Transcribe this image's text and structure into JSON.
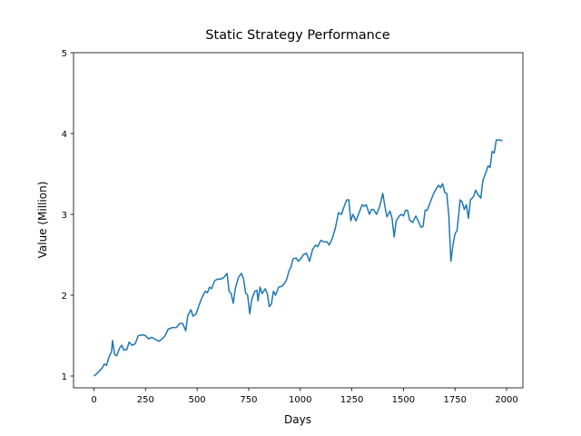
{
  "chart_data": {
    "type": "line",
    "title": "Static Strategy Performance",
    "x_label": "Days",
    "y_label": "Value (Million)",
    "x": [
      0,
      10,
      25,
      40,
      50,
      60,
      75,
      85,
      90,
      100,
      110,
      125,
      135,
      145,
      160,
      170,
      185,
      200,
      215,
      235,
      250,
      265,
      280,
      300,
      315,
      330,
      345,
      360,
      380,
      400,
      415,
      430,
      445,
      455,
      470,
      480,
      495,
      510,
      525,
      540,
      550,
      560,
      570,
      585,
      600,
      615,
      630,
      645,
      655,
      665,
      675,
      685,
      700,
      715,
      725,
      735,
      745,
      755,
      765,
      780,
      790,
      795,
      805,
      815,
      830,
      840,
      850,
      860,
      870,
      880,
      895,
      910,
      925,
      935,
      945,
      955,
      965,
      980,
      990,
      1000,
      1015,
      1030,
      1045,
      1060,
      1075,
      1085,
      1100,
      1115,
      1130,
      1140,
      1155,
      1170,
      1185,
      1200,
      1210,
      1225,
      1235,
      1245,
      1255,
      1270,
      1285,
      1300,
      1310,
      1320,
      1335,
      1345,
      1355,
      1370,
      1385,
      1400,
      1410,
      1420,
      1435,
      1445,
      1455,
      1465,
      1480,
      1490,
      1500,
      1510,
      1520,
      1530,
      1545,
      1560,
      1570,
      1585,
      1595,
      1605,
      1615,
      1630,
      1645,
      1655,
      1670,
      1680,
      1690,
      1700,
      1710,
      1720,
      1730,
      1740,
      1750,
      1760,
      1775,
      1785,
      1795,
      1805,
      1815,
      1825,
      1840,
      1850,
      1860,
      1875,
      1885,
      1900,
      1910,
      1920,
      1930,
      1940,
      1950,
      1965,
      1980
    ],
    "series": [
      {
        "name": "Value",
        "color": "#1f77b4",
        "values": [
          1.0,
          1.02,
          1.06,
          1.1,
          1.15,
          1.13,
          1.25,
          1.3,
          1.44,
          1.27,
          1.25,
          1.35,
          1.38,
          1.32,
          1.33,
          1.42,
          1.38,
          1.4,
          1.5,
          1.51,
          1.5,
          1.46,
          1.48,
          1.45,
          1.43,
          1.46,
          1.5,
          1.58,
          1.6,
          1.6,
          1.65,
          1.65,
          1.56,
          1.75,
          1.82,
          1.74,
          1.77,
          1.88,
          1.98,
          2.05,
          2.03,
          2.1,
          2.08,
          2.18,
          2.2,
          2.2,
          2.22,
          2.27,
          2.05,
          2.02,
          1.9,
          2.08,
          2.22,
          2.27,
          2.2,
          2.03,
          2.0,
          1.77,
          1.95,
          2.05,
          2.06,
          1.93,
          2.1,
          2.02,
          2.08,
          2.02,
          1.86,
          1.89,
          2.05,
          2.0,
          2.1,
          2.11,
          2.15,
          2.2,
          2.3,
          2.35,
          2.45,
          2.46,
          2.42,
          2.44,
          2.5,
          2.52,
          2.42,
          2.57,
          2.62,
          2.6,
          2.68,
          2.66,
          2.66,
          2.62,
          2.7,
          2.83,
          3.02,
          3.0,
          3.08,
          3.18,
          3.18,
          2.92,
          3.0,
          2.92,
          3.02,
          3.12,
          3.1,
          3.12,
          3.0,
          3.06,
          3.06,
          3.0,
          3.1,
          3.26,
          3.1,
          2.97,
          3.04,
          2.95,
          2.72,
          2.92,
          2.98,
          3.0,
          2.98,
          3.05,
          3.05,
          2.93,
          2.9,
          2.98,
          2.93,
          2.84,
          2.85,
          3.05,
          3.05,
          3.15,
          3.25,
          3.3,
          3.36,
          3.33,
          3.38,
          3.27,
          3.26,
          2.98,
          2.42,
          2.62,
          2.76,
          2.8,
          3.18,
          3.15,
          3.06,
          3.12,
          2.95,
          3.18,
          3.22,
          3.3,
          3.25,
          3.2,
          3.42,
          3.52,
          3.6,
          3.58,
          3.78,
          3.76,
          3.92,
          3.92,
          3.91
        ]
      }
    ],
    "xlim": [
      -99,
      2079
    ],
    "ylim": [
      0.854,
      5
    ],
    "xticks": [
      0,
      250,
      500,
      750,
      1000,
      1250,
      1500,
      1750,
      2000
    ],
    "yticks": [
      1,
      2,
      3,
      4,
      5
    ]
  }
}
